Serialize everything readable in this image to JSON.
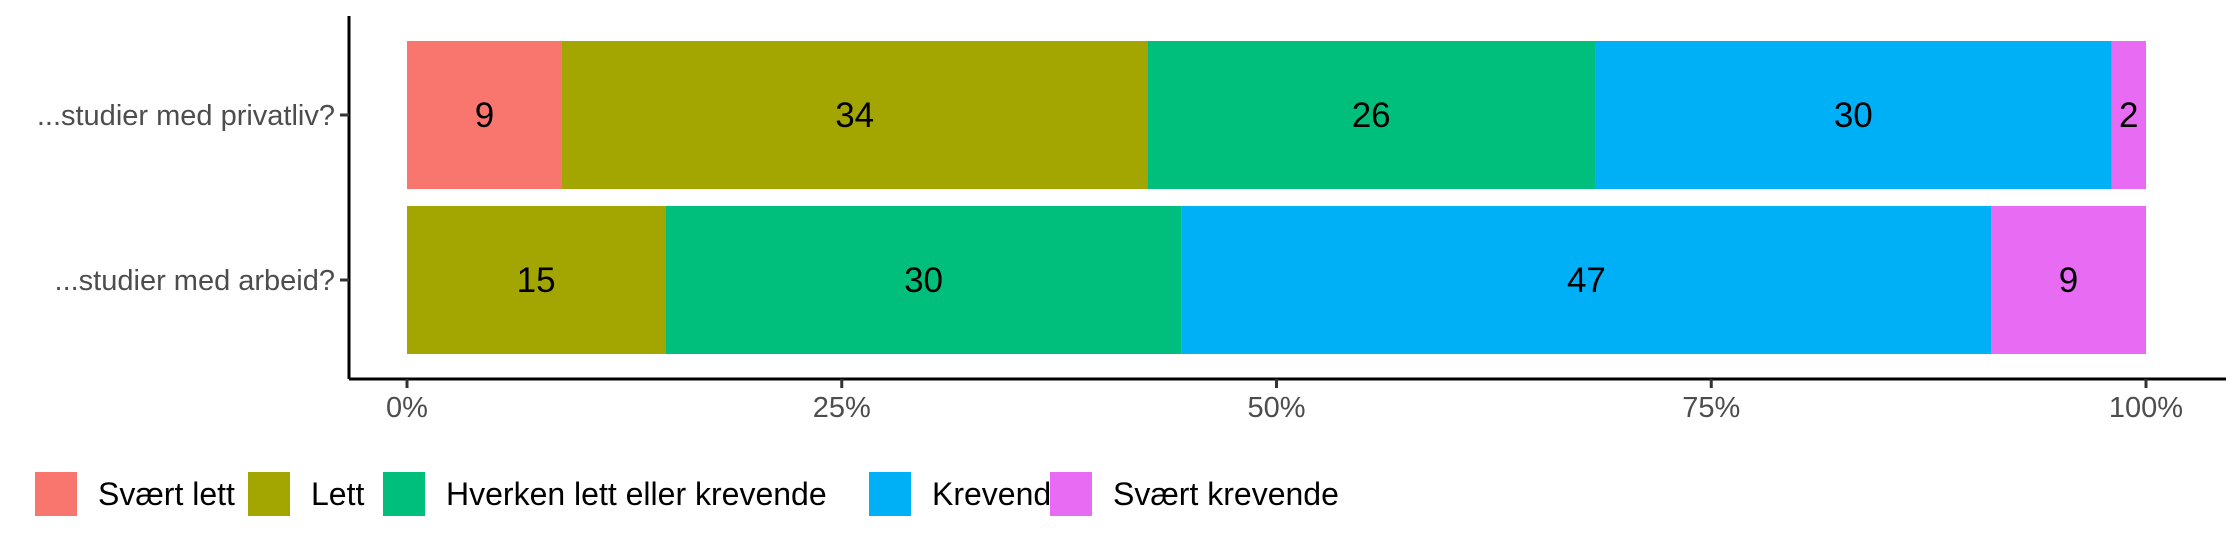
{
  "chart_data": {
    "type": "bar",
    "orientation": "horizontal",
    "stacked": "percent",
    "categories": [
      "...studier med privatliv?",
      "...studier med arbeid?"
    ],
    "series": [
      {
        "name": "Svært lett",
        "color": "#F8766D",
        "values": [
          9,
          0
        ]
      },
      {
        "name": "Lett",
        "color": "#A3A500",
        "values": [
          34,
          15
        ]
      },
      {
        "name": "Hverken lett eller krevende",
        "color": "#00BF7D",
        "values": [
          26,
          30
        ]
      },
      {
        "name": "Krevende",
        "color": "#00B0F6",
        "values": [
          30,
          47
        ]
      },
      {
        "name": "Svært krevende",
        "color": "#E76BF3",
        "values": [
          2,
          9
        ]
      }
    ],
    "xlim": [
      0,
      100
    ],
    "xticks": [
      "0%",
      "25%",
      "50%",
      "75%",
      "100%"
    ],
    "xtick_values": [
      0,
      25,
      50,
      75,
      100
    ],
    "grid": false,
    "legend_position": "bottom"
  }
}
